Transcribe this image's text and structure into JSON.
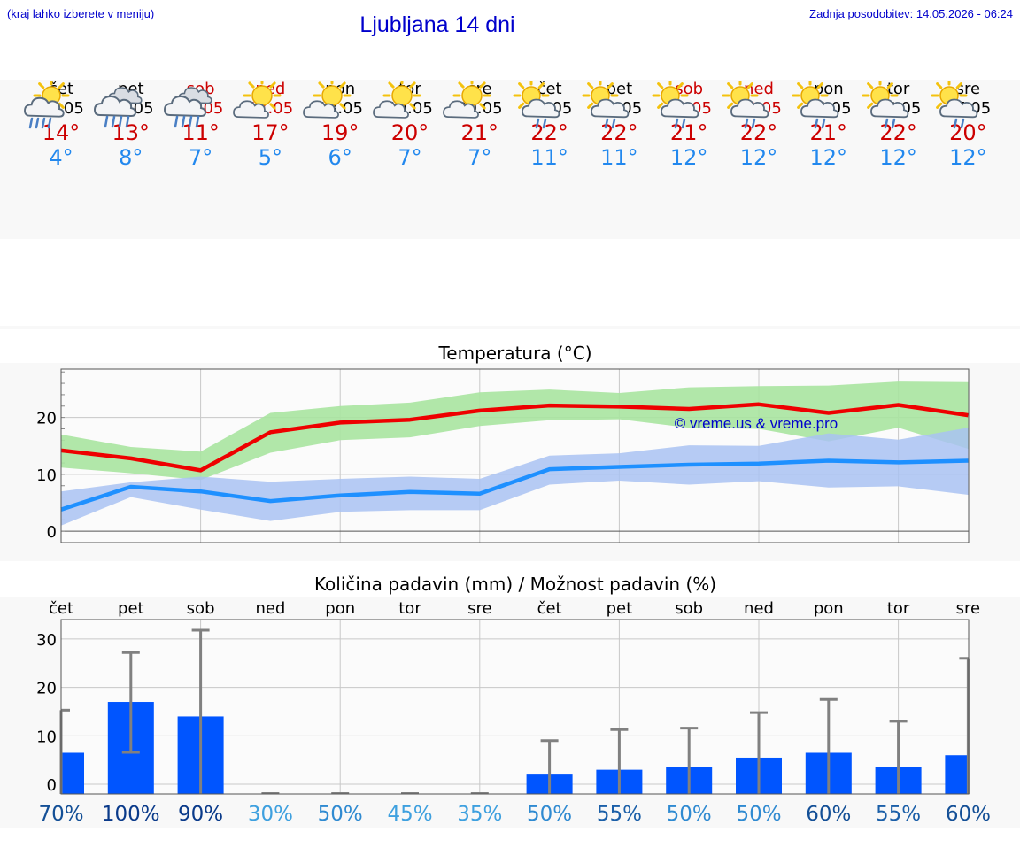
{
  "header": {
    "note": "(kraj lahko izberete v meniju)",
    "title": "Ljubljana 14 dni",
    "update": "Zadnja posodobitev: 14.05.2026 - 06:24"
  },
  "days": [
    {
      "name": "čet",
      "date": "14.05",
      "weekend": false,
      "icon": "sun-cloud-heavy-rain-icon",
      "tmax": "14°",
      "tmin": "4°"
    },
    {
      "name": "pet",
      "date": "15.05",
      "weekend": false,
      "icon": "cloud-heavy-rain-icon",
      "tmax": "13°",
      "tmin": "8°"
    },
    {
      "name": "sob",
      "date": "16.05",
      "weekend": true,
      "icon": "cloud-heavy-rain-icon",
      "tmax": "11°",
      "tmin": "7°"
    },
    {
      "name": "ned",
      "date": "17.05",
      "weekend": true,
      "icon": "sun-cloud-icon",
      "tmax": "17°",
      "tmin": "5°"
    },
    {
      "name": "pon",
      "date": "18.05",
      "weekend": false,
      "icon": "sun-cloud-icon",
      "tmax": "19°",
      "tmin": "6°"
    },
    {
      "name": "tor",
      "date": "19.05",
      "weekend": false,
      "icon": "sun-cloud-icon",
      "tmax": "20°",
      "tmin": "7°"
    },
    {
      "name": "sre",
      "date": "20.05",
      "weekend": false,
      "icon": "sun-cloud-icon",
      "tmax": "21°",
      "tmin": "7°"
    },
    {
      "name": "čet",
      "date": "21.05",
      "weekend": false,
      "icon": "sun-cloud-light-rain-icon",
      "tmax": "22°",
      "tmin": "11°"
    },
    {
      "name": "pet",
      "date": "22.05",
      "weekend": false,
      "icon": "sun-cloud-light-rain-icon",
      "tmax": "22°",
      "tmin": "11°"
    },
    {
      "name": "sob",
      "date": "23.05",
      "weekend": true,
      "icon": "sun-cloud-light-rain-icon",
      "tmax": "21°",
      "tmin": "12°"
    },
    {
      "name": "ned",
      "date": "24.05",
      "weekend": true,
      "icon": "sun-cloud-light-rain-icon",
      "tmax": "22°",
      "tmin": "12°"
    },
    {
      "name": "pon",
      "date": "25.05",
      "weekend": false,
      "icon": "sun-cloud-light-rain-icon",
      "tmax": "21°",
      "tmin": "12°"
    },
    {
      "name": "tor",
      "date": "26.05",
      "weekend": false,
      "icon": "sun-cloud-light-rain-icon",
      "tmax": "22°",
      "tmin": "12°"
    },
    {
      "name": "sre",
      "date": "27.05",
      "weekend": false,
      "icon": "sun-cloud-light-rain-icon",
      "tmax": "20°",
      "tmin": "12°"
    }
  ],
  "colors": {
    "title_blue": "#0000cc",
    "weekend_red": "#cc0000",
    "tmax_line": "#ee0000",
    "tmin_line": "#1e90ff",
    "tmax_band": "#a8e4a0",
    "tmin_band": "#a9c2f2",
    "precip_bar": "#0055ff",
    "error_bar": "#808080",
    "watermark": "#0000cc"
  },
  "chart_data": [
    {
      "type": "line",
      "title": "Temperatura (°C)",
      "watermark": "© vreme.us & vreme.pro",
      "x": [
        "14.05",
        "15.05",
        "16.05",
        "17.05",
        "18.05",
        "19.05",
        "20.05",
        "21.05",
        "22.05",
        "23.05",
        "24.05",
        "25.05",
        "26.05",
        "27.05"
      ],
      "ylim": [
        -2,
        28.5
      ],
      "yticks": [
        "0",
        "10",
        "20"
      ],
      "grid": true,
      "series": [
        {
          "role": "max",
          "values": [
            14.2,
            12.8,
            10.7,
            17.4,
            19.1,
            19.6,
            21.2,
            22.1,
            21.9,
            21.5,
            22.3,
            20.8,
            22.2,
            20.4
          ],
          "band_low": [
            11.2,
            10.2,
            9.0,
            13.8,
            16.0,
            16.5,
            18.5,
            19.5,
            19.7,
            18.2,
            18.0,
            15.8,
            18.2,
            14.5
          ],
          "band_high": [
            17.0,
            14.8,
            14.0,
            20.8,
            22.0,
            22.6,
            24.4,
            24.9,
            24.3,
            25.3,
            25.5,
            25.6,
            26.3,
            26.2
          ]
        },
        {
          "role": "min",
          "values": [
            3.8,
            7.8,
            7.0,
            5.3,
            6.3,
            6.9,
            6.6,
            10.9,
            11.3,
            11.7,
            11.9,
            12.4,
            12.1,
            12.4
          ],
          "band_low": [
            1.0,
            6.0,
            3.8,
            1.8,
            3.4,
            3.7,
            3.7,
            8.2,
            8.9,
            8.2,
            8.8,
            7.7,
            7.9,
            6.4
          ],
          "band_high": [
            7.0,
            8.6,
            9.6,
            8.7,
            9.2,
            9.6,
            9.2,
            13.3,
            13.7,
            15.1,
            15.0,
            17.2,
            16.1,
            18.2
          ]
        }
      ]
    },
    {
      "type": "bar",
      "title": "Količina padavin (mm) / Možnost padavin (%)",
      "categories": [
        "čet",
        "pet",
        "sob",
        "ned",
        "pon",
        "tor",
        "sre",
        "čet",
        "pet",
        "sob",
        "ned",
        "pon",
        "tor",
        "sre"
      ],
      "ylim": [
        -2,
        34
      ],
      "yticks": [
        "0",
        "10",
        "20",
        "30"
      ],
      "grid": true,
      "values": [
        6.5,
        17.0,
        14.0,
        0,
        0,
        0,
        0,
        2.0,
        3.0,
        3.5,
        5.5,
        6.5,
        3.5,
        6.0
      ],
      "err_low": [
        0,
        6.6,
        0,
        0,
        0,
        0,
        0,
        0,
        0,
        0,
        0,
        0,
        0,
        0
      ],
      "err_high": [
        15.3,
        27.2,
        31.8,
        0,
        0,
        0,
        0,
        9.0,
        11.3,
        11.6,
        14.8,
        17.5,
        13.0,
        26.0
      ],
      "probability": [
        "70%",
        "100%",
        "90%",
        "30%",
        "50%",
        "45%",
        "35%",
        "50%",
        "55%",
        "50%",
        "50%",
        "60%",
        "55%",
        "60%"
      ],
      "probability_values": [
        70,
        100,
        90,
        30,
        50,
        45,
        35,
        50,
        55,
        50,
        50,
        60,
        55,
        60
      ]
    }
  ]
}
